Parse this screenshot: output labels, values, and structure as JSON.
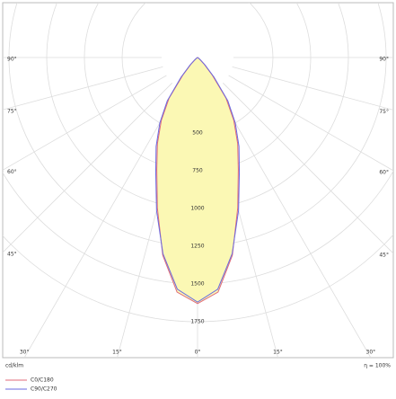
{
  "chart_data": {
    "type": "polar",
    "theta": [
      -90,
      -85,
      -80,
      -75,
      -70,
      -65,
      -60,
      -55,
      -50,
      -45,
      -40,
      -35,
      -30,
      -25,
      -20,
      -15,
      -10,
      -5,
      0,
      5,
      10,
      15,
      20,
      25,
      30,
      35,
      40,
      45,
      50,
      55,
      60,
      65,
      70,
      75,
      80,
      85,
      90
    ],
    "series": [
      {
        "name": "C0/C180",
        "color": "#e06a78",
        "values": [
          0,
          0,
          0,
          0,
          0,
          0,
          3,
          8,
          20,
          60,
          150,
          330,
          480,
          630,
          790,
          1030,
          1330,
          1560,
          1630,
          1560,
          1330,
          1030,
          790,
          630,
          480,
          330,
          150,
          60,
          20,
          8,
          3,
          0,
          0,
          0,
          0,
          0,
          0
        ]
      },
      {
        "name": "C90/C270",
        "color": "#6a6ae0",
        "values": [
          0,
          0,
          0,
          0,
          0,
          0,
          4,
          10,
          25,
          70,
          170,
          350,
          500,
          650,
          810,
          1050,
          1320,
          1540,
          1620,
          1540,
          1320,
          1050,
          810,
          650,
          500,
          350,
          170,
          70,
          25,
          10,
          4,
          0,
          0,
          0,
          0,
          0,
          0
        ]
      }
    ],
    "fill_color": "#fbf8b4",
    "rlim": [
      0,
      2000
    ],
    "rticks": [
      500,
      750,
      1000,
      1250,
      1500,
      1750
    ],
    "thetaticks": [
      {
        "value": -90,
        "label": "90°"
      },
      {
        "value": -75,
        "label": "75°"
      },
      {
        "value": -60,
        "label": "60°"
      },
      {
        "value": -45,
        "label": "45°"
      },
      {
        "value": -30,
        "label": "30°"
      },
      {
        "value": -15,
        "label": "15°"
      },
      {
        "value": 0,
        "label": "0°"
      },
      {
        "value": 15,
        "label": "15°"
      },
      {
        "value": 30,
        "label": "30°"
      },
      {
        "value": 45,
        "label": "45°"
      },
      {
        "value": 60,
        "label": "60°"
      },
      {
        "value": 75,
        "label": "75°"
      },
      {
        "value": 90,
        "label": "90°"
      }
    ],
    "unit_label": "cd/klm",
    "efficiency_label": "η = 100%"
  }
}
